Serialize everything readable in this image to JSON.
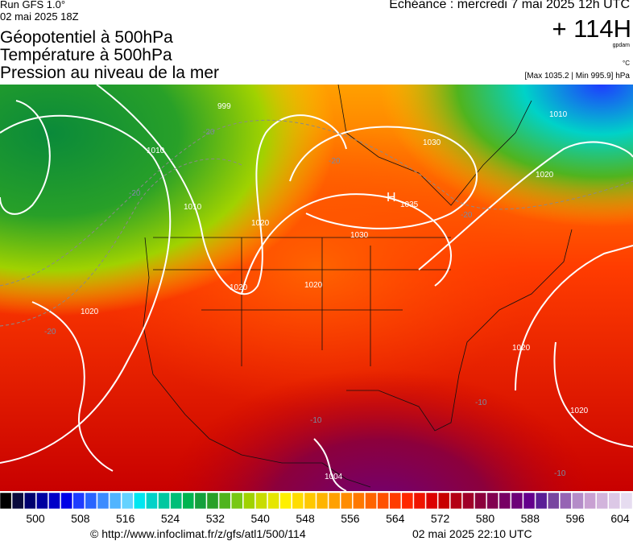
{
  "header": {
    "run": "Run GFS 1.0°",
    "run_date": "02 mai 2025 18Z",
    "echeance": "Echéance : mercredi 7 mai 2025 12h UTC",
    "offset": "+ 114H",
    "unit_geo": "gpdam",
    "unit_temp": "°C",
    "maxmin": "[Max 1035.2 | Min 995.9] hPa",
    "titles": [
      "Géopotentiel à 500hPa",
      "Température à 500hPa",
      "Pression au niveau de la mer"
    ]
  },
  "map_labels": {
    "isobars": [
      "999",
      "1010",
      "1010",
      "1020",
      "1030",
      "1010",
      "1020",
      "1030",
      "1020",
      "1020",
      "1020",
      "1020",
      "1020",
      "1004"
    ],
    "high": "H",
    "high_value": "1035",
    "temps": [
      "-20",
      "-20",
      "-20",
      "-20",
      "-20",
      "-10",
      "-10",
      "-10"
    ]
  },
  "colorbar": {
    "labels": [
      500,
      508,
      516,
      524,
      532,
      540,
      548,
      556,
      564,
      572,
      580,
      588,
      596,
      604
    ],
    "colors": [
      "#000000",
      "#0a0a3c",
      "#00006e",
      "#0000a0",
      "#0000c8",
      "#0000e6",
      "#1e3cff",
      "#2864ff",
      "#3c8cff",
      "#50b4ff",
      "#64d2ff",
      "#00e6f0",
      "#00d2c8",
      "#00c8a0",
      "#00be78",
      "#00b450",
      "#14a03c",
      "#28a028",
      "#50b41e",
      "#78c814",
      "#a0d200",
      "#c8dc00",
      "#e6e600",
      "#fff000",
      "#ffdc00",
      "#ffc800",
      "#ffb400",
      "#ffa000",
      "#ff8c00",
      "#ff7800",
      "#ff6400",
      "#ff5000",
      "#ff3c00",
      "#ff2800",
      "#f01400",
      "#dc0000",
      "#c80000",
      "#b40014",
      "#a00028",
      "#8c003c",
      "#820050",
      "#780064",
      "#6e0078",
      "#64008c",
      "#5a1e96",
      "#7846a0",
      "#9664b4",
      "#b48cc8",
      "#c8a0d2",
      "#d2b4dc",
      "#dcc8e6",
      "#e6dcf0"
    ]
  },
  "footer": {
    "url": "© http://www.infoclimat.fr/z/gfs/atl1/500/114",
    "timestamp": "02 mai 2025 22:10 UTC"
  }
}
